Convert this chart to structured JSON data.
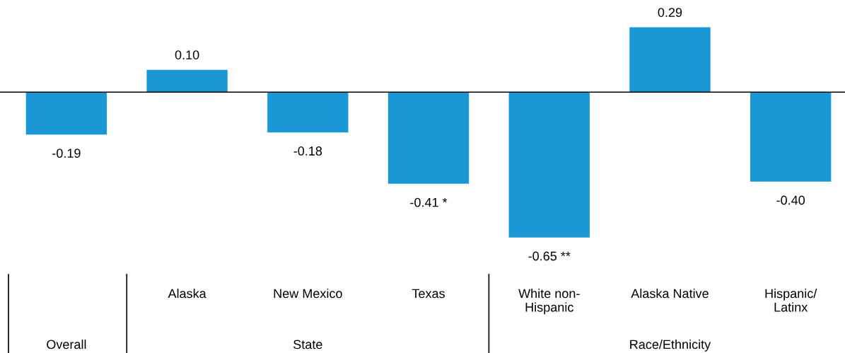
{
  "chart_data": {
    "type": "bar",
    "categories": [
      null,
      "Alaska",
      "New Mexico",
      "Texas",
      "White non-\nHispanic",
      "Alaska Native",
      "Hispanic/\nLatinx"
    ],
    "values": [
      -0.19,
      0.1,
      -0.18,
      -0.41,
      -0.65,
      0.29,
      -0.4
    ],
    "value_labels": [
      "-0.19",
      "0.10",
      "-0.18",
      "-0.41 *",
      "-0.65 **",
      "0.29",
      "-0.40"
    ],
    "color": "#1a98d5",
    "annotations": [
      "Overall",
      "State",
      "Race/Ethnicity"
    ]
  }
}
